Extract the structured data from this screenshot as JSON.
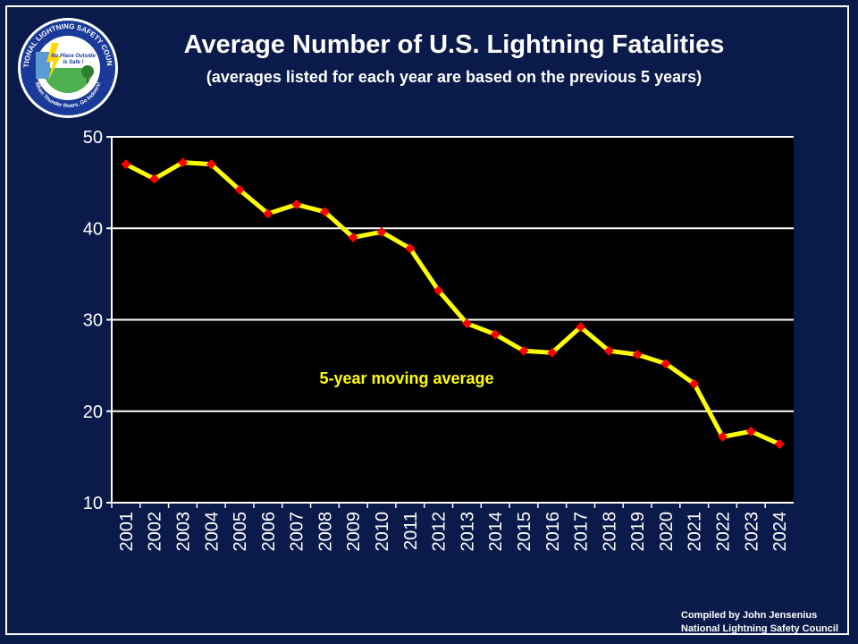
{
  "colors": {
    "background": "#0a1a4a",
    "plot_background": "#000000",
    "line": "#ffff00",
    "marker": "#ff0000",
    "grid": "#ffffff",
    "text": "#ffffff",
    "annotation": "#ffff00"
  },
  "logo": {
    "org_ring_text": "NATIONAL LIGHTNING SAFETY COUNCIL",
    "inner_text_1": "No Place Outside",
    "inner_text_2": "Is Safe !",
    "bottom_text": "When Thunder Roars, Go Indoors!"
  },
  "credit": {
    "line1": "Compiled by John Jensenius",
    "line2": "National Lightning Safety Council"
  },
  "chart_data": {
    "type": "line",
    "title": "Average Number of U.S. Lightning Fatalities",
    "subtitle": "(averages listed for each year are based on the previous  5 years)",
    "annotation": "5-year moving average",
    "xlabel": "",
    "ylabel": "",
    "ylim": [
      10,
      50
    ],
    "yticks": [
      10,
      20,
      30,
      40,
      50
    ],
    "grid": true,
    "legend": "none",
    "categories": [
      "2001",
      "2002",
      "2003",
      "2004",
      "2005",
      "2006",
      "2007",
      "2008",
      "2009",
      "2010",
      "2011",
      "2012",
      "2013",
      "2014",
      "2015",
      "2016",
      "2017",
      "2018",
      "2019",
      "2020",
      "2021",
      "2022",
      "2023",
      "2024"
    ],
    "series": [
      {
        "values": [
          47.0,
          45.4,
          47.2,
          47.0,
          44.2,
          41.6,
          42.6,
          41.8,
          39.0,
          39.6,
          37.8,
          33.2,
          29.6,
          28.4,
          26.6,
          26.4,
          29.2,
          26.6,
          26.2,
          25.2,
          23.0,
          17.2,
          17.8,
          16.4
        ]
      }
    ]
  }
}
